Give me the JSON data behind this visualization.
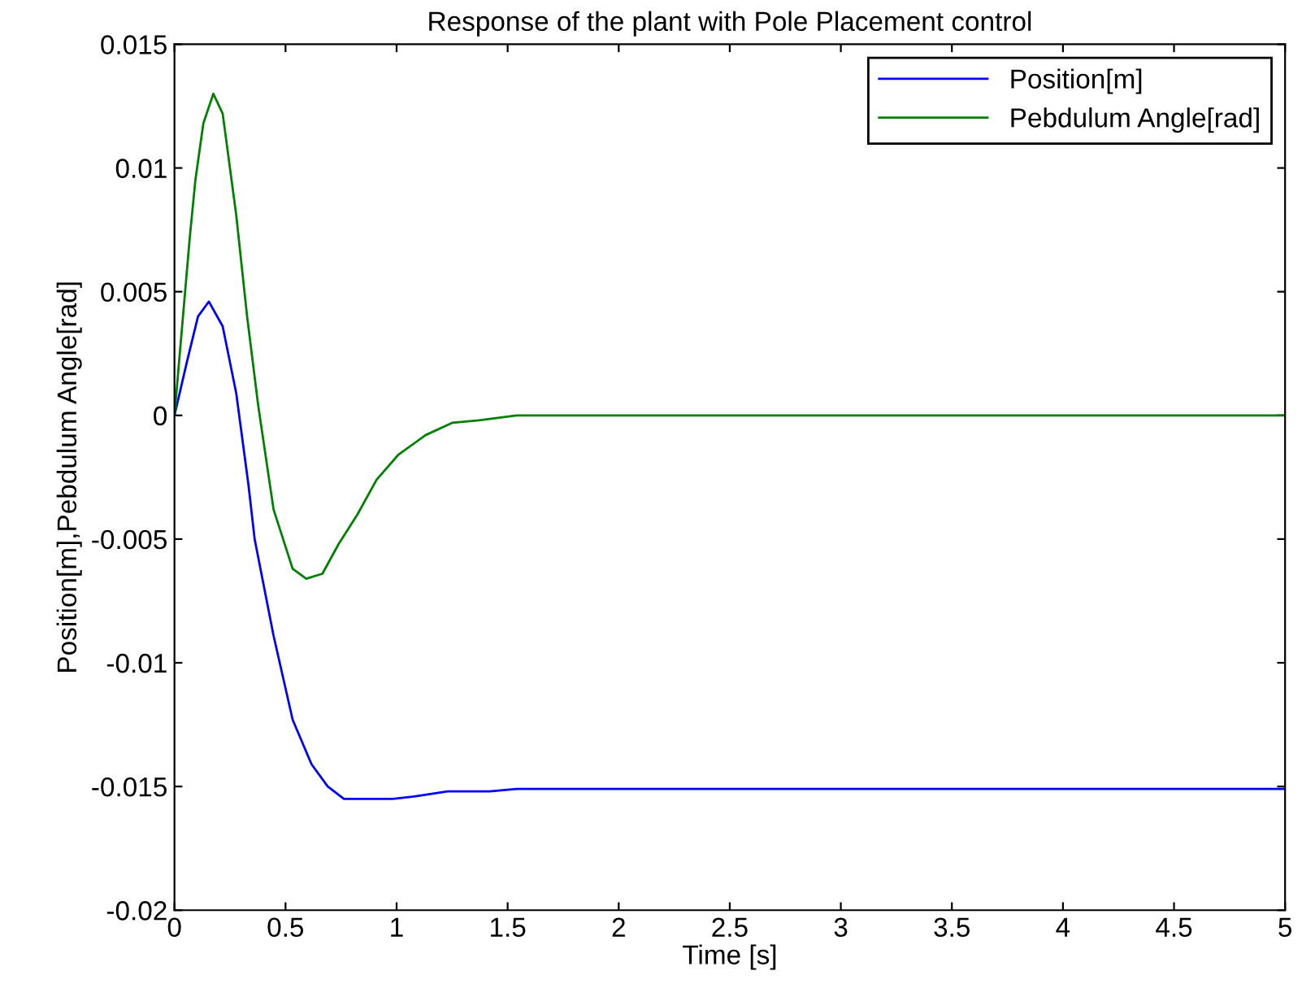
{
  "chart_data": {
    "type": "line",
    "title": "Response of the plant with Pole Placement control",
    "xlabel": "Time [s]",
    "ylabel": "Position[m],Pebdulum Angle[rad]",
    "xlim": [
      0,
      5
    ],
    "ylim": [
      -0.02,
      0.015
    ],
    "xticks": [
      0,
      0.5,
      1,
      1.5,
      2,
      2.5,
      3,
      3.5,
      4,
      4.5,
      5
    ],
    "yticks": [
      {
        "value": -0.02,
        "label": "-0.02"
      },
      {
        "value": -0.015,
        "label": "-0.015"
      },
      {
        "value": -0.01,
        "label": "-0.01"
      },
      {
        "value": -0.005,
        "label": "-0.005"
      },
      0,
      0.005,
      0.01,
      0.015
    ],
    "grid": false,
    "legend": "top right",
    "line_style": "solid",
    "marker": "none",
    "series": [
      {
        "name": "Position[m]",
        "color": "#0000ff",
        "x": [
          0,
          0.057,
          0.106,
          0.155,
          0.217,
          0.278,
          0.333,
          0.361,
          0.446,
          0.532,
          0.617,
          0.69,
          0.763,
          0.983,
          1.08,
          1.23,
          1.42,
          1.54,
          5
        ],
        "values": [
          0,
          0.0022,
          0.004,
          0.0046,
          0.0036,
          0.0009,
          -0.0028,
          -0.005,
          -0.0089,
          -0.0123,
          -0.0141,
          -0.015,
          -0.0155,
          -0.0155,
          -0.0154,
          -0.0152,
          -0.0152,
          -0.0151,
          -0.0151
        ]
      },
      {
        "name": "Pebdulum Angle[rad]",
        "color": "#008000",
        "x": [
          0,
          0.069,
          0.094,
          0.13,
          0.175,
          0.217,
          0.278,
          0.327,
          0.377,
          0.446,
          0.532,
          0.593,
          0.666,
          0.739,
          0.824,
          0.91,
          1.007,
          1.13,
          1.25,
          1.37,
          1.54,
          5
        ],
        "values": [
          0,
          0.0072,
          0.0095,
          0.0118,
          0.013,
          0.0122,
          0.0081,
          0.004,
          0.0004,
          -0.0038,
          -0.0062,
          -0.0066,
          -0.0064,
          -0.0052,
          -0.004,
          -0.0026,
          -0.0016,
          -0.0008,
          -0.0003,
          -0.0002,
          0,
          0
        ]
      }
    ]
  }
}
